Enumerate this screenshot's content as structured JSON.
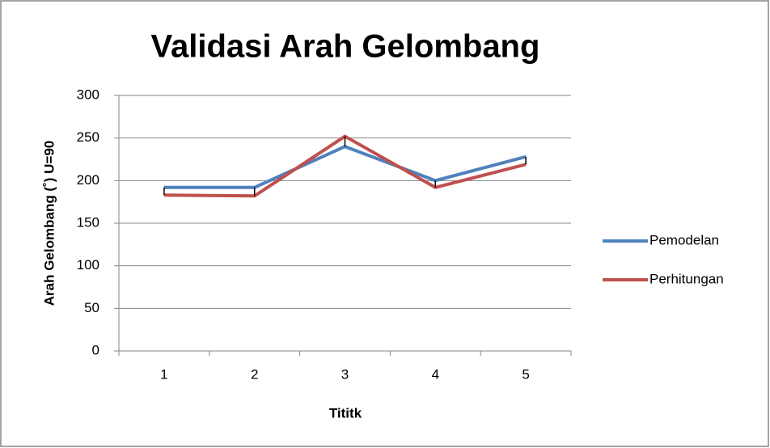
{
  "chart_data": {
    "type": "line",
    "title": "Validasi Arah Gelombang",
    "x_label": "Tititk",
    "y_label": "Arah Gelombang (˚) U=90",
    "categories": [
      "1",
      "2",
      "3",
      "4",
      "5"
    ],
    "series": [
      {
        "name": "Pemodelan",
        "color": "#4f81bd",
        "values": [
          192,
          192,
          240,
          200,
          228
        ]
      },
      {
        "name": "Perhitungan",
        "color": "#c0504d",
        "values": [
          183,
          182,
          252,
          192,
          219
        ]
      }
    ],
    "ylim": [
      0,
      300
    ],
    "yticks": [
      0,
      50,
      100,
      150,
      200,
      250,
      300
    ],
    "grid": true,
    "legend": "right"
  }
}
